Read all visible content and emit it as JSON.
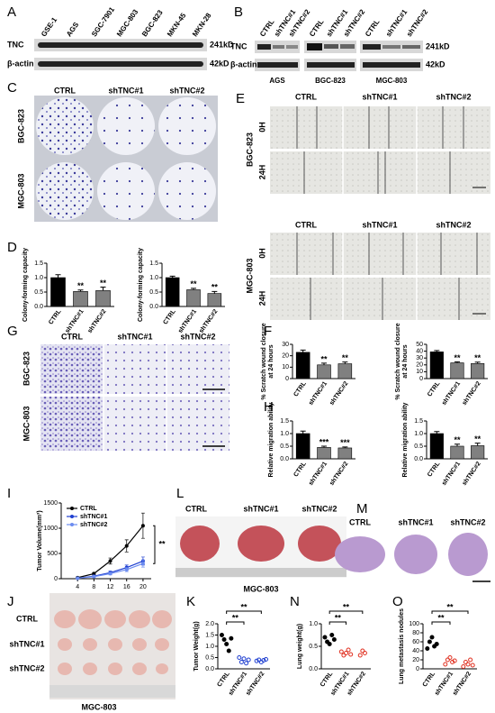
{
  "panels": {
    "A": {
      "label": "A",
      "lanes": [
        "GSE-1",
        "AGS",
        "SGC-7901",
        "MGC-803",
        "BGC-823",
        "MKN-45",
        "MKN-28"
      ],
      "proteins": [
        "TNC",
        "β-actin"
      ],
      "sizes": [
        "241kD",
        "42kD"
      ]
    },
    "B": {
      "label": "B",
      "groups": [
        "CTRL",
        "shTNC#1",
        "shTNC#2"
      ],
      "proteins": [
        "TNC",
        "β-actin"
      ],
      "sizes": [
        "241kD",
        "42kD"
      ],
      "cell_lines": [
        "AGS",
        "BGC-823",
        "MGC-803"
      ]
    },
    "C": {
      "label": "C",
      "groups": [
        "CTRL",
        "shTNC#1",
        "shTNC#2"
      ],
      "cell_lines": [
        "BGC-823",
        "MGC-803"
      ]
    },
    "D": {
      "label": "D"
    },
    "E": {
      "label": "E",
      "groups": [
        "CTRL",
        "shTNC#1",
        "shTNC#2"
      ],
      "times": [
        "0H",
        "24H"
      ],
      "cell_lines": [
        "BGC-823",
        "MGC-803"
      ]
    },
    "F": {
      "label": "F"
    },
    "G": {
      "label": "G",
      "groups": [
        "CTRL",
        "shTNC#1",
        "shTNC#2"
      ],
      "cell_lines": [
        "BGC-823",
        "MGC-803"
      ]
    },
    "H": {
      "label": "H"
    },
    "I": {
      "label": "I"
    },
    "J": {
      "label": "J",
      "groups": [
        "CTRL",
        "shTNC#1",
        "shTNC#2"
      ],
      "cell_line": "MGC-803"
    },
    "K": {
      "label": "K"
    },
    "L": {
      "label": "L",
      "groups": [
        "CTRL",
        "shTNC#1",
        "shTNC#2"
      ],
      "cell_line": "MGC-803"
    },
    "M": {
      "label": "M",
      "groups": [
        "CTRL",
        "shTNC#1",
        "shTNC#2"
      ]
    },
    "N": {
      "label": "N"
    },
    "O": {
      "label": "O"
    }
  },
  "chart_data": [
    {
      "type": "bar",
      "y_label": [
        "Colony-forming capacity"
      ],
      "categories": [
        "CTRL",
        "shTNC#1",
        "shTNC#2"
      ],
      "values": [
        1.0,
        0.52,
        0.55
      ],
      "errors": [
        0.1,
        0.05,
        0.12
      ],
      "colors": [
        "#000000",
        "#808080",
        "#808080"
      ],
      "ylim": [
        0,
        1.5
      ],
      "yticks": [
        {
          "value": 0,
          "label": "0.0"
        },
        {
          "value": 0.5,
          "label": "0.5"
        },
        {
          "value": 1,
          "label": "1.0"
        },
        {
          "value": 1.5,
          "label": "1.5"
        }
      ],
      "significance": [
        "**",
        "**"
      ]
    },
    {
      "type": "bar",
      "y_label": [
        "Colony-forming capacity"
      ],
      "categories": [
        "CTRL",
        "shTNC#1",
        "shTNC#2"
      ],
      "values": [
        1.0,
        0.58,
        0.45
      ],
      "errors": [
        0.05,
        0.05,
        0.07
      ],
      "colors": [
        "#000000",
        "#808080",
        "#808080"
      ],
      "ylim": [
        0,
        1.5
      ],
      "yticks": [
        {
          "value": 0,
          "label": "0.0"
        },
        {
          "value": 0.5,
          "label": "0.5"
        },
        {
          "value": 1,
          "label": "1.0"
        },
        {
          "value": 1.5,
          "label": "1.5"
        }
      ],
      "significance": [
        "**",
        "**"
      ]
    },
    {
      "type": "bar",
      "y_label": [
        "% Scratch wound closure",
        "at 24 hours"
      ],
      "categories": [
        "CTRL",
        "shTNC#1",
        "shTNC#2"
      ],
      "values": [
        23,
        12,
        13
      ],
      "errors": [
        2,
        1.5,
        1.5
      ],
      "colors": [
        "#000000",
        "#808080",
        "#808080"
      ],
      "ylim": [
        0,
        30
      ],
      "yticks": [
        0,
        10,
        20,
        30
      ],
      "significance": [
        "**",
        "**"
      ]
    },
    {
      "type": "bar",
      "y_label": [
        "% Scratch wound closure",
        "at 24 hours"
      ],
      "categories": [
        "CTRL",
        "shTNC#1",
        "shTNC#2"
      ],
      "values": [
        39,
        23,
        22
      ],
      "errors": [
        2,
        1.5,
        2
      ],
      "colors": [
        "#000000",
        "#808080",
        "#808080"
      ],
      "ylim": [
        0,
        50
      ],
      "yticks": [
        0,
        10,
        20,
        30,
        40,
        50
      ],
      "significance": [
        "**",
        "**"
      ]
    },
    {
      "type": "bar",
      "y_label": [
        "Relative migration ability"
      ],
      "categories": [
        "CTRL",
        "shTNC#1",
        "shTNC#2"
      ],
      "values": [
        1.0,
        0.45,
        0.43
      ],
      "errors": [
        0.1,
        0.05,
        0.04
      ],
      "colors": [
        "#000000",
        "#808080",
        "#808080"
      ],
      "ylim": [
        0,
        1.5
      ],
      "yticks": [
        {
          "value": 0,
          "label": "0.0"
        },
        {
          "value": 0.5,
          "label": "0.5"
        },
        {
          "value": 1,
          "label": "1.0"
        },
        {
          "value": 1.5,
          "label": "1.5"
        }
      ],
      "significance": [
        "***",
        "***"
      ]
    },
    {
      "type": "bar",
      "y_label": [
        "Relative migration ability"
      ],
      "categories": [
        "CTRL",
        "shTNC#1",
        "shTNC#2"
      ],
      "values": [
        1.0,
        0.5,
        0.52
      ],
      "errors": [
        0.08,
        0.08,
        0.1
      ],
      "colors": [
        "#000000",
        "#808080",
        "#808080"
      ],
      "ylim": [
        0,
        1.5
      ],
      "yticks": [
        {
          "value": 0,
          "label": "0.0"
        },
        {
          "value": 0.5,
          "label": "0.5"
        },
        {
          "value": 1,
          "label": "1.0"
        },
        {
          "value": 1.5,
          "label": "1.5"
        }
      ],
      "significance": [
        "**",
        "**"
      ]
    },
    {
      "type": "line",
      "y_label": [
        "Tumor Volume(mm³)"
      ],
      "x": [
        4,
        8,
        12,
        16,
        20
      ],
      "xlim": [
        0,
        22
      ],
      "xticks": [
        4,
        8,
        12,
        16,
        20
      ],
      "ylim": [
        0,
        1500
      ],
      "yticks": [
        0,
        500,
        1000,
        1500
      ],
      "series": [
        {
          "name": "CTRL",
          "color": "#000000",
          "values": [
            20,
            100,
            350,
            650,
            1050
          ],
          "errors": [
            5,
            20,
            60,
            120,
            250
          ]
        },
        {
          "name": "shTNC#1",
          "color": "#1f3fd0",
          "values": [
            10,
            50,
            120,
            220,
            350
          ],
          "errors": [
            3,
            10,
            30,
            50,
            80
          ]
        },
        {
          "name": "shTNC#2",
          "color": "#6c8cf0",
          "values": [
            10,
            40,
            100,
            180,
            300
          ],
          "errors": [
            3,
            10,
            25,
            40,
            70
          ]
        }
      ],
      "significance": [
        "**"
      ]
    },
    {
      "type": "dot",
      "y_label": [
        "Tumor Weight(g)"
      ],
      "groups": [
        {
          "name": "CTRL",
          "color": "#000000",
          "values": [
            1.5,
            1.3,
            1.1,
            0.8,
            1.35
          ]
        },
        {
          "name": "shTNC#1",
          "color": "#1f3fd0",
          "values": [
            0.5,
            0.3,
            0.45,
            0.25,
            0.4
          ]
        },
        {
          "name": "shTNC#2",
          "color": "#1f3fd0",
          "values": [
            0.35,
            0.4,
            0.3,
            0.38,
            0.42
          ]
        }
      ],
      "ylim": [
        0,
        2
      ],
      "yticks": [
        {
          "value": 0,
          "label": "0.0"
        },
        {
          "value": 0.5,
          "label": "0.5"
        },
        {
          "value": 1,
          "label": "1.0"
        },
        {
          "value": 1.5,
          "label": "1.5"
        },
        {
          "value": 2,
          "label": "2.0"
        }
      ],
      "significance": [
        "**",
        "**"
      ]
    },
    {
      "type": "dot",
      "y_label": [
        "Lung weight(g)"
      ],
      "groups": [
        {
          "name": "CTRL",
          "color": "#000000",
          "values": [
            0.7,
            0.6,
            0.55,
            0.75,
            0.65
          ]
        },
        {
          "name": "shTNC#1",
          "color": "#e03020",
          "values": [
            0.38,
            0.3,
            0.35,
            0.42,
            0.32
          ]
        },
        {
          "name": "shTNC#2",
          "color": "#e03020",
          "values": [
            0.3,
            0.4,
            0.35
          ]
        }
      ],
      "ylim": [
        0,
        1
      ],
      "yticks": [
        {
          "value": 0,
          "label": "0.0"
        },
        {
          "value": 0.5,
          "label": "0.5"
        },
        {
          "value": 1,
          "label": "1.0"
        }
      ],
      "significance": [
        "**",
        "**"
      ]
    },
    {
      "type": "dot",
      "y_label": [
        "Lung metastasis nodules"
      ],
      "groups": [
        {
          "name": "CTRL",
          "color": "#000000",
          "values": [
            45,
            60,
            70,
            50,
            55
          ]
        },
        {
          "name": "shTNC#1",
          "color": "#e03020",
          "values": [
            10,
            20,
            25,
            15,
            18
          ]
        },
        {
          "name": "shTNC#2",
          "color": "#e03020",
          "values": [
            5,
            15,
            10,
            20,
            8
          ]
        }
      ],
      "ylim": [
        0,
        100
      ],
      "yticks": [
        0,
        20,
        40,
        60,
        80,
        100
      ],
      "significance": [
        "**",
        "**"
      ]
    }
  ]
}
